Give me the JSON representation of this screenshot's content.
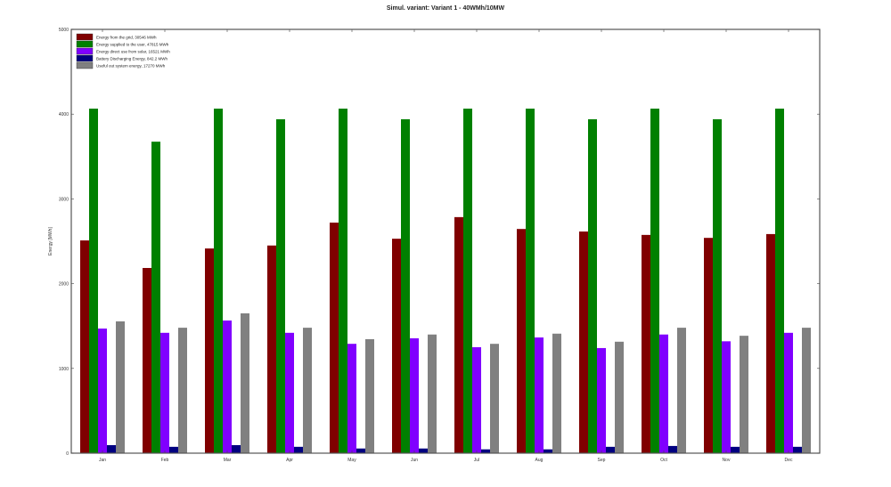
{
  "chart_data": {
    "type": "bar",
    "title": "Simul. variant: Variant 1 - 40WMh/10MW",
    "xlabel": "",
    "ylabel": "Energy [MWh]",
    "ylim": [
      0,
      5000
    ],
    "yticks": [
      0,
      1000,
      2000,
      3000,
      4000,
      5000
    ],
    "grid": false,
    "legend_position": "top-left",
    "categories": [
      "Jan",
      "Feb",
      "Mar",
      "Apr",
      "May",
      "Jun",
      "Jul",
      "Aug",
      "Sep",
      "Oct",
      "Nov",
      "Dec"
    ],
    "series": [
      {
        "name": "Energy from the grid,  30546 MWh",
        "color": "#800000",
        "values": [
          2510,
          2185,
          2415,
          2450,
          2720,
          2530,
          2785,
          2645,
          2615,
          2575,
          2540,
          2585
        ]
      },
      {
        "name": "Energy supplied to the user,  47815 MWh",
        "color": "#008000",
        "values": [
          4065,
          3675,
          4065,
          3940,
          4065,
          3940,
          4065,
          4065,
          3940,
          4065,
          3940,
          4065
        ]
      },
      {
        "name": "Energy direct use from solar,  16521 MWh",
        "color": "#8000ff",
        "values": [
          1470,
          1420,
          1565,
          1420,
          1290,
          1355,
          1250,
          1365,
          1240,
          1400,
          1320,
          1420
        ]
      },
      {
        "name": "Battery Discharging Energy,  842.2 MWh",
        "color": "#000080",
        "values": [
          95,
          75,
          95,
          75,
          55,
          55,
          45,
          45,
          75,
          85,
          75,
          75
        ]
      },
      {
        "name": "Useful out system energy,  17270 MWh",
        "color": "#808080",
        "values": [
          1555,
          1480,
          1650,
          1480,
          1345,
          1400,
          1290,
          1410,
          1315,
          1480,
          1385,
          1480
        ]
      }
    ]
  }
}
